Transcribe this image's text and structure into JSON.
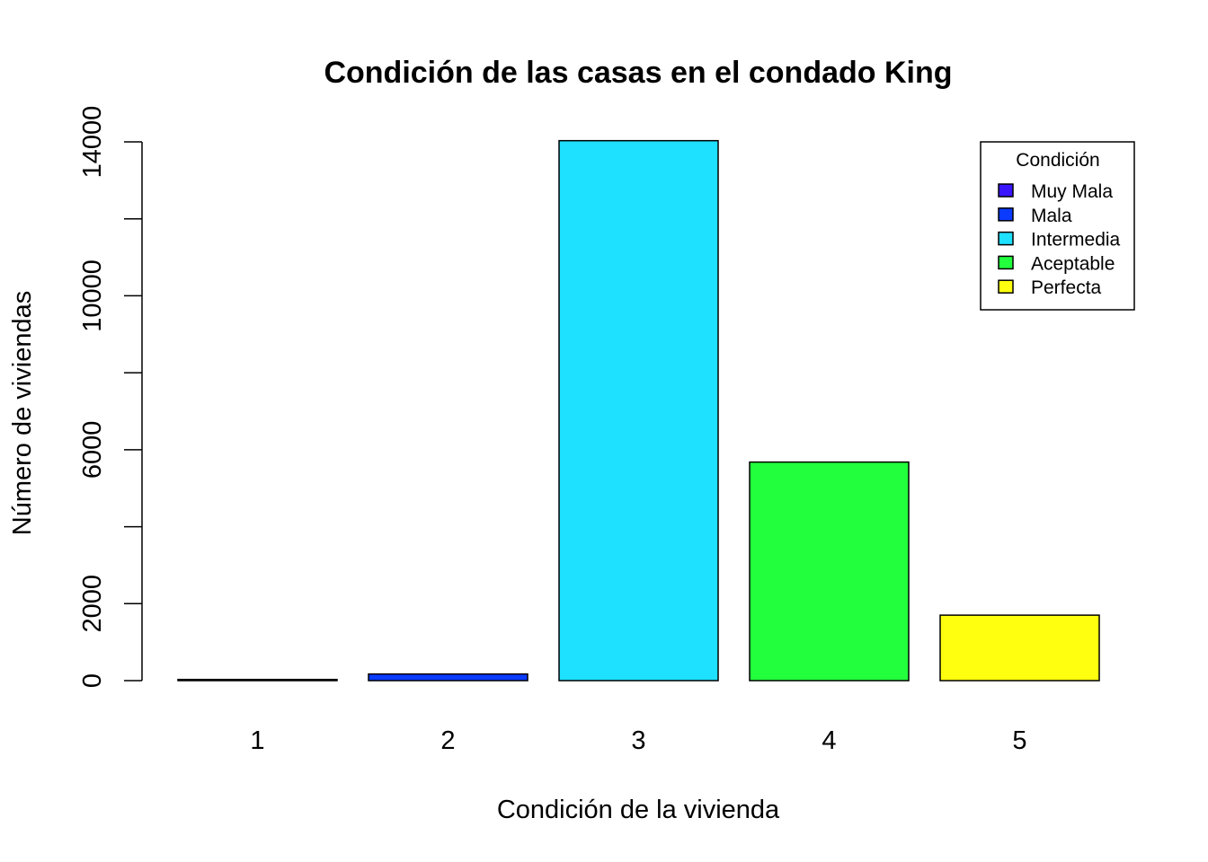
{
  "chart_data": {
    "type": "bar",
    "title": "Condición de las casas en el condado King",
    "xlabel": "Condición de la vivienda",
    "ylabel": "Número de viviendas",
    "categories": [
      "1",
      "2",
      "3",
      "4",
      "5"
    ],
    "values": [
      30,
      172,
      14031,
      5679,
      1701
    ],
    "colors": [
      "#3a16ff",
      "#0a3bff",
      "#1ee0ff",
      "#22ff3d",
      "#ffff10"
    ],
    "ylim": [
      0,
      14000
    ],
    "yticks": [
      0,
      2000,
      6000,
      10000,
      14000
    ],
    "yminor_ticks": [
      4000,
      8000,
      12000
    ],
    "grid": false,
    "legend": {
      "title": "Condición",
      "position": "top-right",
      "entries": [
        "Muy Mala",
        "Mala",
        "Intermedia",
        "Aceptable",
        "Perfecta"
      ]
    }
  }
}
